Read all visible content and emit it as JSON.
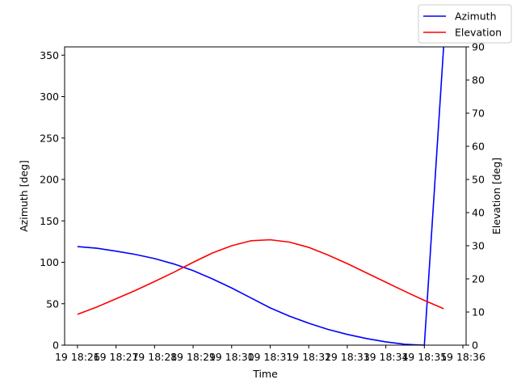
{
  "chart_data": {
    "type": "line",
    "title": "",
    "xlabel": "Time",
    "ylabel_left": "Azimuth [deg]",
    "ylabel_right": "Elevation [deg]",
    "x_tick_labels": [
      "19 18:26",
      "19 18:27",
      "19 18:28",
      "19 18:29",
      "19 18:30",
      "19 18:31",
      "19 18:32",
      "19 18:33",
      "19 18:34",
      "19 18:35",
      "19 18:36"
    ],
    "xlim": [
      "18:25:40",
      "18:36:05"
    ],
    "ylim_left": [
      0,
      360
    ],
    "ylim_right": [
      0,
      90
    ],
    "left_ticks": [
      0,
      50,
      100,
      150,
      200,
      250,
      300,
      350
    ],
    "right_ticks": [
      0,
      10,
      20,
      30,
      40,
      50,
      60,
      70,
      80,
      90
    ],
    "grid": false,
    "legend_position": "top-right",
    "x": [
      "18:26:00",
      "18:26:30",
      "18:27:00",
      "18:27:30",
      "18:28:00",
      "18:28:30",
      "18:29:00",
      "18:29:30",
      "18:30:00",
      "18:30:30",
      "18:31:00",
      "18:31:30",
      "18:32:00",
      "18:32:30",
      "18:33:00",
      "18:33:30",
      "18:34:00",
      "18:34:30",
      "18:35:00",
      "18:35:30"
    ],
    "series": [
      {
        "name": "Azimuth",
        "axis": "left",
        "color": "#0000ff",
        "values": [
          119,
          117,
          113.5,
          109.5,
          104.5,
          98,
          90,
          80,
          69,
          57,
          45,
          35,
          26.5,
          19,
          13,
          8,
          4,
          1,
          0,
          360
        ]
      },
      {
        "name": "Elevation",
        "axis": "right",
        "color": "#ff0000",
        "values": [
          9.3,
          11.5,
          14,
          16.5,
          19.2,
          22,
          25,
          27.8,
          30,
          31.5,
          31.8,
          31.1,
          29.5,
          27.2,
          24.6,
          21.8,
          19,
          16.2,
          13.5,
          11
        ]
      }
    ]
  }
}
